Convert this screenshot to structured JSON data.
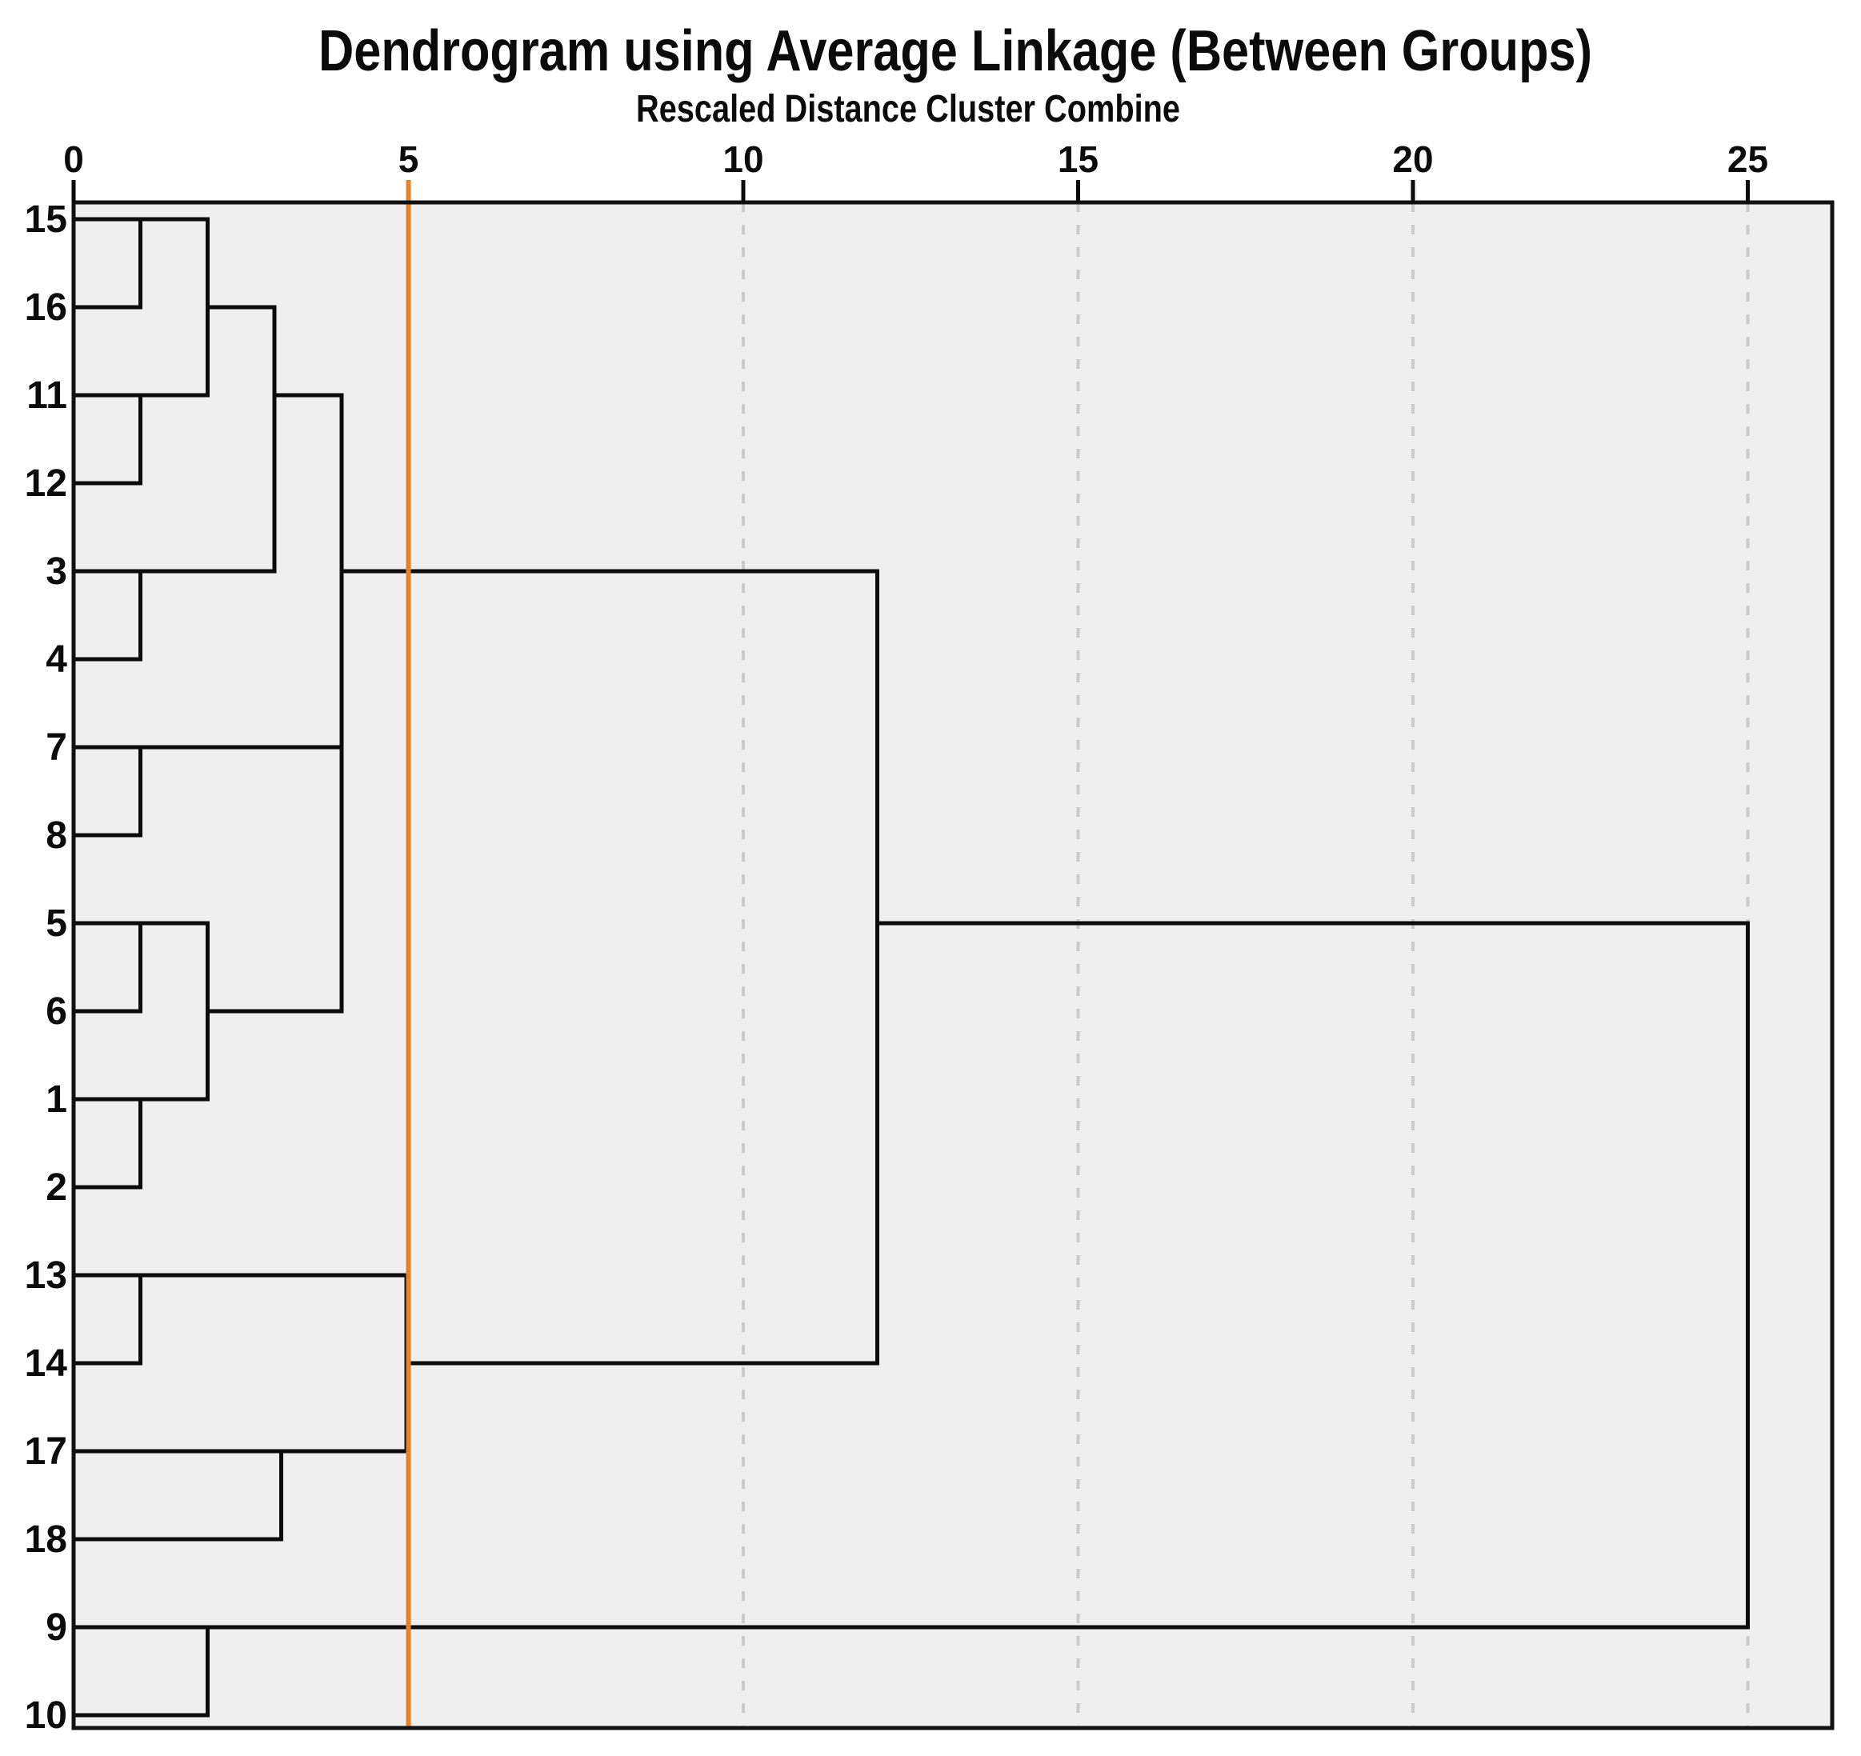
{
  "title": "Dendrogram using Average Linkage (Between Groups)",
  "subtitle": "Rescaled Distance Cluster Combine",
  "axis": {
    "tick_values": [
      0,
      5,
      10,
      15,
      20,
      25
    ],
    "tick_labels": [
      "0",
      "5",
      "10",
      "15",
      "20",
      "25"
    ],
    "gridline_values": [
      10,
      15,
      20,
      25
    ],
    "range": [
      0,
      25
    ]
  },
  "cutoff_line": {
    "value": 5,
    "color": "#E8812E"
  },
  "colors": {
    "dendrogram_line": "#0b0b0b",
    "plot_background": "#EFEFEF",
    "page_background": "#FFFFFF",
    "plot_border": "#111111",
    "gridline": "#CBCBCB",
    "cutoff": "#E8812E",
    "text": "#0b0b0b"
  },
  "chart_data": {
    "type": "dendrogram",
    "orientation": "horizontal",
    "title": "Dendrogram using Average Linkage (Between Groups)",
    "xlabel": "Rescaled Distance Cluster Combine",
    "xlim": [
      0,
      25
    ],
    "grid": "dashed vertical at 10,15,20,25; solid orange cutoff at 5",
    "leaves_order_top_to_bottom": [
      "15",
      "16",
      "11",
      "12",
      "3",
      "4",
      "7",
      "8",
      "5",
      "6",
      "1",
      "2",
      "13",
      "14",
      "17",
      "18",
      "9",
      "10"
    ],
    "merges": [
      {
        "cluster_a": "15",
        "cluster_b": "16",
        "distance": 1
      },
      {
        "cluster_a": "11",
        "cluster_b": "12",
        "distance": 1
      },
      {
        "cluster_a": "(15,16)",
        "cluster_b": "(11,12)",
        "distance": 2
      },
      {
        "cluster_a": "3",
        "cluster_b": "4",
        "distance": 1
      },
      {
        "cluster_a": "(15,16,11,12)",
        "cluster_b": "(3,4)",
        "distance": 3
      },
      {
        "cluster_a": "7",
        "cluster_b": "8",
        "distance": 1
      },
      {
        "cluster_a": "(15,16,11,12,3,4)",
        "cluster_b": "(7,8)",
        "distance": 4
      },
      {
        "cluster_a": "5",
        "cluster_b": "6",
        "distance": 1
      },
      {
        "cluster_a": "1",
        "cluster_b": "2",
        "distance": 1
      },
      {
        "cluster_a": "(5,6)",
        "cluster_b": "(1,2)",
        "distance": 2
      },
      {
        "cluster_a": "(15,16,11,12,3,4,7,8)",
        "cluster_b": "(5,6,1,2)",
        "distance": 4
      },
      {
        "cluster_a": "13",
        "cluster_b": "14",
        "distance": 1
      },
      {
        "cluster_a": "17",
        "cluster_b": "18",
        "distance": 3.1
      },
      {
        "cluster_a": "(13,14)",
        "cluster_b": "(17,18)",
        "distance": 5
      },
      {
        "cluster_a": "(15,16,11,12,3,4,7,8,5,6,1,2)",
        "cluster_b": "(13,14,17,18)",
        "distance": 12
      },
      {
        "cluster_a": "9",
        "cluster_b": "10",
        "distance": 2
      },
      {
        "cluster_a": "(15,16,11,12,3,4,7,8,5,6,1,2,13,14,17,18)",
        "cluster_b": "(9,10)",
        "distance": 25
      }
    ],
    "draw": {
      "leaves": [
        {
          "label": "15",
          "row": 1,
          "line_to": 2
        },
        {
          "label": "16",
          "row": 2,
          "line_to": 1
        },
        {
          "label": "11",
          "row": 3,
          "line_to": 2
        },
        {
          "label": "12",
          "row": 4,
          "line_to": 1
        },
        {
          "label": "3",
          "row": 5,
          "line_to": 3
        },
        {
          "label": "4",
          "row": 6,
          "line_to": 1
        },
        {
          "label": "7",
          "row": 7,
          "line_to": 4
        },
        {
          "label": "8",
          "row": 8,
          "line_to": 1
        },
        {
          "label": "5",
          "row": 9,
          "line_to": 2
        },
        {
          "label": "6",
          "row": 10,
          "line_to": 1
        },
        {
          "label": "1",
          "row": 11,
          "line_to": 2
        },
        {
          "label": "2",
          "row": 12,
          "line_to": 1
        },
        {
          "label": "13",
          "row": 13,
          "line_to": 4.97
        },
        {
          "label": "14",
          "row": 14,
          "line_to": 1
        },
        {
          "label": "17",
          "row": 15,
          "line_to": 4.97
        },
        {
          "label": "18",
          "row": 16,
          "line_to": 3.1
        },
        {
          "label": "9",
          "row": 17,
          "line_to": 25
        },
        {
          "label": "10",
          "row": 18,
          "line_to": 2
        }
      ],
      "links": [
        {
          "v": 1,
          "row_top": 1,
          "row_bot": 2,
          "parent_row": 1,
          "parent_to": 2
        },
        {
          "v": 1,
          "row_top": 3,
          "row_bot": 4,
          "parent_row": 3,
          "parent_to": 2
        },
        {
          "v": 2,
          "row_top": 1,
          "row_bot": 3,
          "parent_row": 2,
          "parent_to": 3
        },
        {
          "v": 1,
          "row_top": 5,
          "row_bot": 6,
          "parent_row": 5,
          "parent_to": 3
        },
        {
          "v": 3,
          "row_top": 2,
          "row_bot": 5,
          "parent_row": 3,
          "parent_to": 4
        },
        {
          "v": 1,
          "row_top": 7,
          "row_bot": 8,
          "parent_row": 7,
          "parent_to": 4
        },
        {
          "v": 4,
          "row_top": 3,
          "row_bot": 7,
          "parent_row": 5,
          "parent_to": 4
        },
        {
          "v": 1,
          "row_top": 9,
          "row_bot": 10,
          "parent_row": 9,
          "parent_to": 2
        },
        {
          "v": 1,
          "row_top": 11,
          "row_bot": 12,
          "parent_row": 11,
          "parent_to": 2
        },
        {
          "v": 2,
          "row_top": 9,
          "row_bot": 11,
          "parent_row": 10,
          "parent_to": 4
        },
        {
          "v": 4,
          "row_top": 5,
          "row_bot": 10,
          "parent_row": 5,
          "parent_to": 12
        },
        {
          "v": 1,
          "row_top": 13,
          "row_bot": 14,
          "parent_row": 13,
          "parent_to": 4.97
        },
        {
          "v": 3.1,
          "row_top": 15,
          "row_bot": 16,
          "parent_row": 15,
          "parent_to": 4.97
        },
        {
          "v": 4.97,
          "row_top": 13,
          "row_bot": 15,
          "parent_row": 14,
          "parent_to": 12
        },
        {
          "v": 12,
          "row_top": 5,
          "row_bot": 14,
          "parent_row": 9,
          "parent_to": 25
        },
        {
          "v": 2,
          "row_top": 17,
          "row_bot": 18,
          "parent_row": 17,
          "parent_to": 25
        },
        {
          "v": 25,
          "row_top": 9,
          "row_bot": 17,
          "parent_row": null,
          "parent_to": null
        }
      ]
    }
  }
}
